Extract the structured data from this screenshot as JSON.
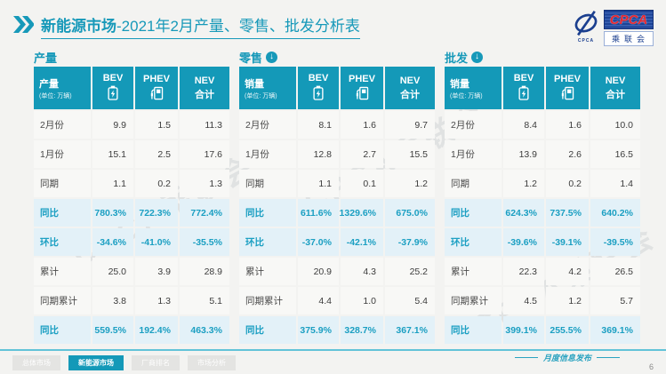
{
  "header": {
    "title_main": "新能源市场",
    "title_rest": "-2021年2月产量、零售、批发分析表",
    "logo": {
      "acronym": "CPCA",
      "name": "乘联会"
    }
  },
  "watermark": "CPCA乘联会",
  "tables": [
    {
      "section_title": "产量",
      "has_arrow_icon": false,
      "corner_label": "产量",
      "corner_unit": "(单位: 万辆)",
      "col_bev": "BEV",
      "col_phev": "PHEV",
      "col_nev1": "NEV",
      "col_nev2": "合计",
      "rows": [
        {
          "label": "2月份",
          "values": [
            "9.9",
            "1.5",
            "11.3"
          ],
          "highlight": false
        },
        {
          "label": "1月份",
          "values": [
            "15.1",
            "2.5",
            "17.6"
          ],
          "highlight": false
        },
        {
          "label": "同期",
          "values": [
            "1.1",
            "0.2",
            "1.3"
          ],
          "highlight": false
        },
        {
          "label": "同比",
          "values": [
            "780.3%",
            "722.3%",
            "772.4%"
          ],
          "highlight": true
        },
        {
          "label": "环比",
          "values": [
            "-34.6%",
            "-41.0%",
            "-35.5%"
          ],
          "highlight": true
        },
        {
          "label": "累计",
          "values": [
            "25.0",
            "3.9",
            "28.9"
          ],
          "highlight": false
        },
        {
          "label": "同期累计",
          "values": [
            "3.8",
            "1.3",
            "5.1"
          ],
          "highlight": false
        },
        {
          "label": "同比",
          "values": [
            "559.5%",
            "192.4%",
            "463.3%"
          ],
          "highlight": true
        }
      ]
    },
    {
      "section_title": "零售",
      "has_arrow_icon": true,
      "corner_label": "销量",
      "corner_unit": "(单位: 万辆)",
      "col_bev": "BEV",
      "col_phev": "PHEV",
      "col_nev1": "NEV",
      "col_nev2": "合计",
      "rows": [
        {
          "label": "2月份",
          "values": [
            "8.1",
            "1.6",
            "9.7"
          ],
          "highlight": false
        },
        {
          "label": "1月份",
          "values": [
            "12.8",
            "2.7",
            "15.5"
          ],
          "highlight": false
        },
        {
          "label": "同期",
          "values": [
            "1.1",
            "0.1",
            "1.2"
          ],
          "highlight": false
        },
        {
          "label": "同比",
          "values": [
            "611.6%",
            "1329.6%",
            "675.0%"
          ],
          "highlight": true
        },
        {
          "label": "环比",
          "values": [
            "-37.0%",
            "-42.1%",
            "-37.9%"
          ],
          "highlight": true
        },
        {
          "label": "累计",
          "values": [
            "20.9",
            "4.3",
            "25.2"
          ],
          "highlight": false
        },
        {
          "label": "同期累计",
          "values": [
            "4.4",
            "1.0",
            "5.4"
          ],
          "highlight": false
        },
        {
          "label": "同比",
          "values": [
            "375.9%",
            "328.7%",
            "367.1%"
          ],
          "highlight": true
        }
      ]
    },
    {
      "section_title": "批发",
      "has_arrow_icon": true,
      "corner_label": "销量",
      "corner_unit": "(单位: 万辆)",
      "col_bev": "BEV",
      "col_phev": "PHEV",
      "col_nev1": "NEV",
      "col_nev2": "合计",
      "rows": [
        {
          "label": "2月份",
          "values": [
            "8.4",
            "1.6",
            "10.0"
          ],
          "highlight": false
        },
        {
          "label": "1月份",
          "values": [
            "13.9",
            "2.6",
            "16.5"
          ],
          "highlight": false
        },
        {
          "label": "同期",
          "values": [
            "1.2",
            "0.2",
            "1.4"
          ],
          "highlight": false
        },
        {
          "label": "同比",
          "values": [
            "624.3%",
            "737.5%",
            "640.2%"
          ],
          "highlight": true
        },
        {
          "label": "环比",
          "values": [
            "-39.6%",
            "-39.1%",
            "-39.5%"
          ],
          "highlight": true
        },
        {
          "label": "累计",
          "values": [
            "22.3",
            "4.2",
            "26.5"
          ],
          "highlight": false
        },
        {
          "label": "同期累计",
          "values": [
            "4.5",
            "1.2",
            "5.7"
          ],
          "highlight": false
        },
        {
          "label": "同比",
          "values": [
            "399.1%",
            "255.5%",
            "369.1%"
          ],
          "highlight": true
        }
      ]
    }
  ],
  "footer": {
    "tabs": [
      {
        "label": "总体市场",
        "active": false
      },
      {
        "label": "新能源市场",
        "active": true
      },
      {
        "label": "厂商排名",
        "active": false
      },
      {
        "label": "市场分析",
        "active": false
      }
    ],
    "release_label": "月度信息发布",
    "page_number": "6"
  },
  "colors": {
    "accent_teal": "#1499b8",
    "highlight_row_bg": "#e3f1f8",
    "highlight_text": "#1b9fc2",
    "logo_blue": "#1b3f8f",
    "logo_red": "#e8262d"
  }
}
